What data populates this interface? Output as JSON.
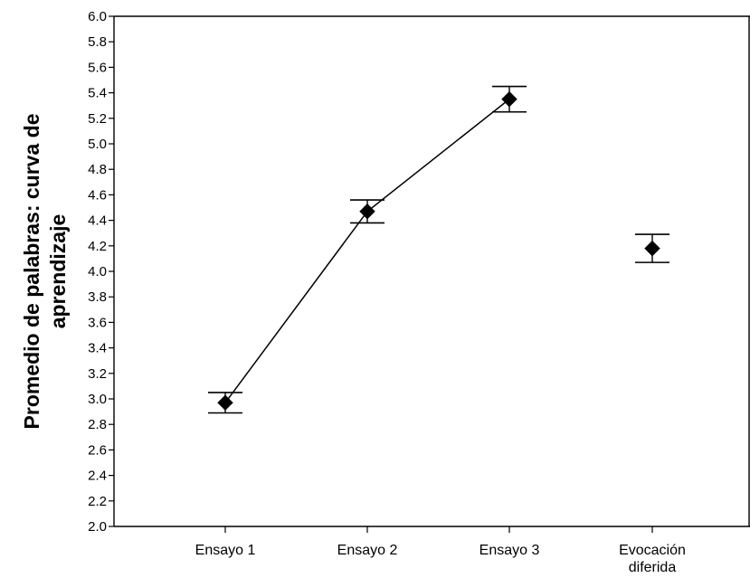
{
  "chart_data": {
    "type": "line",
    "title": "",
    "xlabel": "",
    "ylabel_lines": [
      "Promedio de palabras: curva de",
      "aprendizaje"
    ],
    "ylim": [
      2.0,
      6.0
    ],
    "y_ticks": [
      "2.0",
      "2.2",
      "2.4",
      "2.6",
      "2.8",
      "3.0",
      "3.2",
      "3.4",
      "3.6",
      "3.8",
      "4.0",
      "4.2",
      "4.4",
      "4.6",
      "4.8",
      "5.0",
      "5.2",
      "5.4",
      "5.6",
      "5.8",
      "6.0"
    ],
    "categories": [
      {
        "lines": [
          "Ensayo 1"
        ]
      },
      {
        "lines": [
          "Ensayo 2"
        ]
      },
      {
        "lines": [
          "Ensayo 3"
        ]
      },
      {
        "lines": [
          "Evocación",
          "diferida"
        ]
      }
    ],
    "series": [
      {
        "values": [
          2.97,
          4.47,
          5.35,
          4.18
        ],
        "error_low": [
          2.89,
          4.38,
          5.25,
          4.07
        ],
        "error_high": [
          3.05,
          4.56,
          5.45,
          4.29
        ],
        "connected_points": [
          0,
          1,
          2
        ]
      }
    ],
    "grid": false,
    "legend": "none",
    "colors": {
      "line": "#000000",
      "marker": "#000000",
      "axis": "#000000",
      "background": "#ffffff"
    },
    "marker_shape": "diamond"
  }
}
